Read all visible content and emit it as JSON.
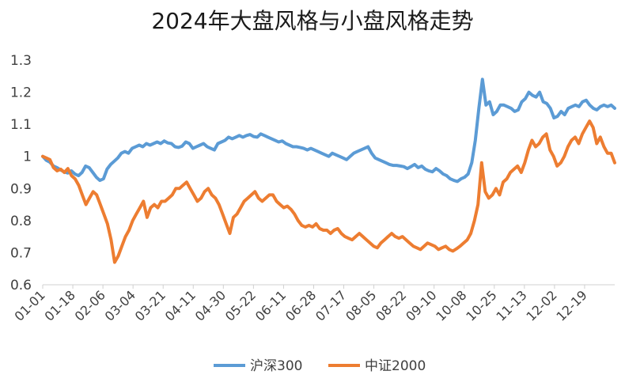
{
  "chart_data": {
    "type": "line",
    "title": "2024年大盘风格与小盘风格走势",
    "xlabel": "",
    "ylabel": "",
    "ylim": [
      0.6,
      1.3
    ],
    "yticks": [
      "0.6",
      "0.7",
      "0.8",
      "0.9",
      "1",
      "1.1",
      "1.2",
      "1.3"
    ],
    "xticks": [
      "01-01",
      "01-18",
      "02-06",
      "03-04",
      "03-21",
      "04-11",
      "04-30",
      "05-22",
      "06-11",
      "06-28",
      "07-17",
      "08-05",
      "08-22",
      "09-10",
      "10-08",
      "10-25",
      "11-13",
      "12-02",
      "12-19"
    ],
    "grid": false,
    "legend_position": "bottom",
    "series": [
      {
        "name": "沪深300",
        "color": "#5B9BD5",
        "values": [
          1.0,
          0.988,
          0.982,
          0.97,
          0.965,
          0.958,
          0.952,
          0.948,
          0.955,
          0.945,
          0.94,
          0.95,
          0.97,
          0.965,
          0.95,
          0.935,
          0.925,
          0.93,
          0.96,
          0.975,
          0.985,
          0.995,
          1.01,
          1.015,
          1.01,
          1.025,
          1.03,
          1.035,
          1.03,
          1.04,
          1.035,
          1.04,
          1.045,
          1.04,
          1.048,
          1.042,
          1.04,
          1.03,
          1.028,
          1.032,
          1.045,
          1.04,
          1.025,
          1.03,
          1.035,
          1.04,
          1.03,
          1.025,
          1.02,
          1.04,
          1.045,
          1.05,
          1.06,
          1.055,
          1.06,
          1.065,
          1.06,
          1.065,
          1.068,
          1.062,
          1.06,
          1.07,
          1.065,
          1.06,
          1.055,
          1.05,
          1.045,
          1.048,
          1.04,
          1.035,
          1.03,
          1.03,
          1.028,
          1.025,
          1.02,
          1.025,
          1.02,
          1.015,
          1.01,
          1.005,
          1.0,
          1.01,
          1.005,
          1.0,
          0.995,
          0.99,
          1.0,
          1.01,
          1.015,
          1.02,
          1.025,
          1.03,
          1.01,
          0.995,
          0.99,
          0.985,
          0.98,
          0.975,
          0.972,
          0.972,
          0.97,
          0.968,
          0.962,
          0.968,
          0.975,
          0.965,
          0.97,
          0.96,
          0.955,
          0.952,
          0.962,
          0.955,
          0.945,
          0.94,
          0.93,
          0.925,
          0.922,
          0.93,
          0.935,
          0.945,
          0.98,
          1.05,
          1.15,
          1.24,
          1.16,
          1.17,
          1.13,
          1.14,
          1.16,
          1.16,
          1.155,
          1.15,
          1.14,
          1.145,
          1.17,
          1.18,
          1.2,
          1.19,
          1.185,
          1.2,
          1.17,
          1.165,
          1.15,
          1.12,
          1.125,
          1.14,
          1.13,
          1.15,
          1.155,
          1.16,
          1.155,
          1.17,
          1.175,
          1.16,
          1.15,
          1.145,
          1.155,
          1.16,
          1.155,
          1.16,
          1.15
        ]
      },
      {
        "name": "中证2000",
        "color": "#ED7D31",
        "values": [
          1.0,
          0.995,
          0.99,
          0.965,
          0.955,
          0.96,
          0.95,
          0.962,
          0.94,
          0.93,
          0.91,
          0.88,
          0.85,
          0.87,
          0.89,
          0.88,
          0.85,
          0.82,
          0.79,
          0.74,
          0.67,
          0.69,
          0.72,
          0.75,
          0.77,
          0.8,
          0.82,
          0.84,
          0.86,
          0.81,
          0.84,
          0.85,
          0.84,
          0.86,
          0.86,
          0.87,
          0.88,
          0.9,
          0.9,
          0.91,
          0.92,
          0.9,
          0.88,
          0.86,
          0.87,
          0.89,
          0.9,
          0.88,
          0.87,
          0.85,
          0.82,
          0.79,
          0.76,
          0.81,
          0.82,
          0.84,
          0.86,
          0.87,
          0.88,
          0.89,
          0.87,
          0.86,
          0.87,
          0.88,
          0.88,
          0.86,
          0.85,
          0.84,
          0.845,
          0.835,
          0.82,
          0.8,
          0.785,
          0.78,
          0.785,
          0.78,
          0.79,
          0.775,
          0.77,
          0.77,
          0.76,
          0.77,
          0.775,
          0.76,
          0.75,
          0.745,
          0.74,
          0.75,
          0.76,
          0.75,
          0.74,
          0.73,
          0.72,
          0.715,
          0.73,
          0.74,
          0.75,
          0.76,
          0.75,
          0.745,
          0.75,
          0.74,
          0.73,
          0.72,
          0.715,
          0.71,
          0.72,
          0.73,
          0.725,
          0.72,
          0.71,
          0.715,
          0.72,
          0.71,
          0.705,
          0.712,
          0.72,
          0.73,
          0.74,
          0.76,
          0.8,
          0.85,
          0.98,
          0.89,
          0.87,
          0.88,
          0.9,
          0.88,
          0.92,
          0.93,
          0.95,
          0.96,
          0.97,
          0.95,
          0.98,
          1.02,
          1.05,
          1.03,
          1.04,
          1.06,
          1.07,
          1.02,
          1.0,
          0.97,
          0.98,
          1.0,
          1.03,
          1.05,
          1.06,
          1.04,
          1.07,
          1.09,
          1.11,
          1.09,
          1.04,
          1.06,
          1.03,
          1.01,
          1.01,
          0.98
        ]
      }
    ]
  }
}
